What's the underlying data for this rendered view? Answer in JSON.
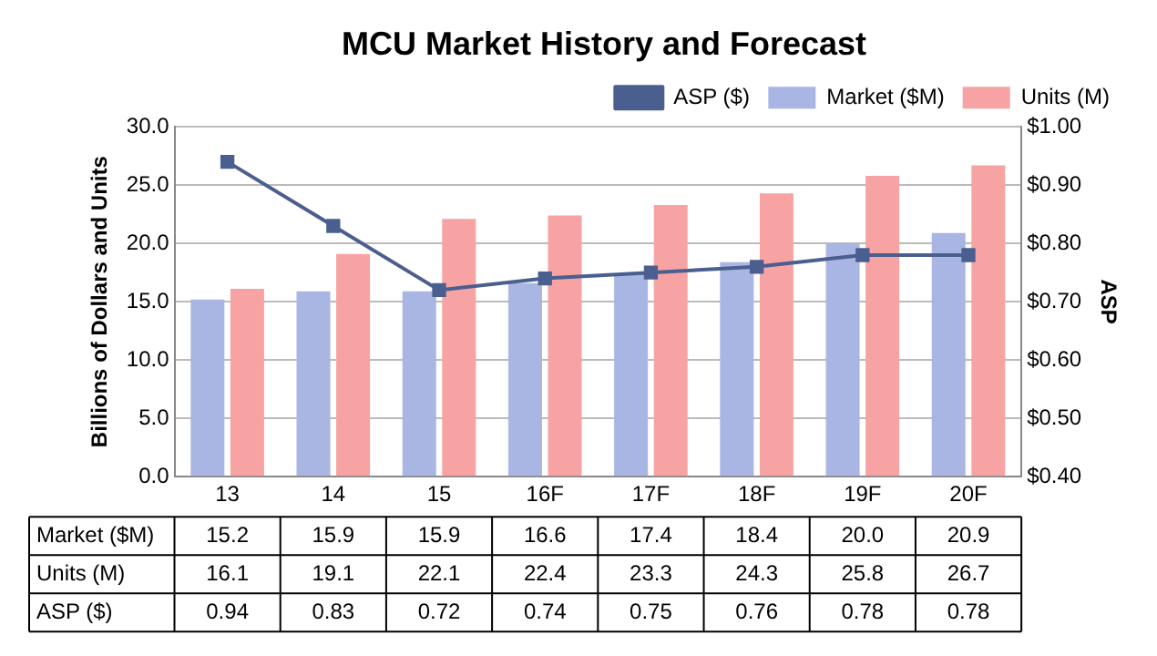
{
  "chart_data": {
    "type": "bar",
    "title": "MCU Market History and Forecast",
    "categories": [
      "13",
      "14",
      "15",
      "16F",
      "17F",
      "18F",
      "19F",
      "20F"
    ],
    "series": [
      {
        "name": "Market ($M)",
        "color": "#a9b6e3",
        "values": [
          15.2,
          15.9,
          15.9,
          16.6,
          17.4,
          18.4,
          20.0,
          20.9
        ],
        "value_labels": [
          "15.2",
          "15.9",
          "15.9",
          "16.6",
          "17.4",
          "18.4",
          "20.0",
          "20.9"
        ]
      },
      {
        "name": "Units (M)",
        "color": "#f7a3a3",
        "values": [
          16.1,
          19.1,
          22.1,
          22.4,
          23.3,
          24.3,
          25.8,
          26.7
        ],
        "value_labels": [
          "16.1",
          "19.1",
          "22.1",
          "22.4",
          "23.3",
          "24.3",
          "25.8",
          "26.7"
        ]
      },
      {
        "name": "ASP ($)",
        "type": "line",
        "axis": "y2",
        "color": "#4a5f8f",
        "marker": "square",
        "values": [
          0.94,
          0.83,
          0.72,
          0.74,
          0.75,
          0.76,
          0.78,
          0.78
        ],
        "value_labels": [
          "0.94",
          "0.83",
          "0.72",
          "0.74",
          "0.75",
          "0.76",
          "0.78",
          "0.78"
        ]
      }
    ],
    "ylabel": "Billions of Dollars and Units",
    "y2label": "ASP",
    "ylim": [
      0,
      30
    ],
    "yticks": [
      {
        "value": 0,
        "label": "0.0"
      },
      {
        "value": 5,
        "label": "5.0"
      },
      {
        "value": 10,
        "label": "10.0"
      },
      {
        "value": 15,
        "label": "15.0"
      },
      {
        "value": 20,
        "label": "20.0"
      },
      {
        "value": 25,
        "label": "25.0"
      },
      {
        "value": 30,
        "label": "30.0"
      }
    ],
    "y2lim": [
      0.4,
      1.0
    ],
    "y2ticks": [
      {
        "value": 0.4,
        "label": "$0.40"
      },
      {
        "value": 0.5,
        "label": "$0.50"
      },
      {
        "value": 0.6,
        "label": "$0.60"
      },
      {
        "value": 0.7,
        "label": "$0.70"
      },
      {
        "value": 0.8,
        "label": "$0.80"
      },
      {
        "value": 0.9,
        "label": "$0.90"
      },
      {
        "value": 1.0,
        "label": "$1.00"
      }
    ],
    "grid": "y",
    "legend": "top right"
  }
}
